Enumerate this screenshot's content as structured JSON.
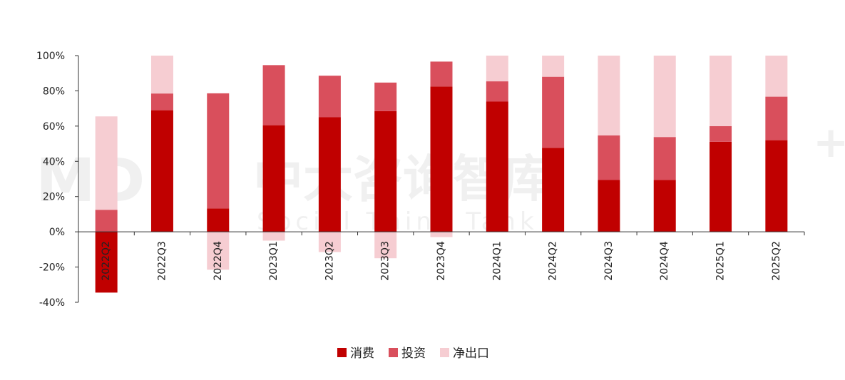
{
  "chart_data": {
    "type": "bar",
    "stacked": true,
    "categories": [
      "2022Q2",
      "2022Q3",
      "2022Q4",
      "2023Q1",
      "2023Q2",
      "2023Q3",
      "2023Q4",
      "2024Q1",
      "2024Q2",
      "2024Q3",
      "2024Q4",
      "2025Q1",
      "2025Q2"
    ],
    "series": [
      {
        "name": "消费",
        "color": "#c00000",
        "values": [
          -34.5,
          69,
          13.3,
          60.5,
          65,
          68.5,
          82.5,
          73.9,
          47.7,
          29.4,
          29.5,
          51.1,
          52
        ]
      },
      {
        "name": "投资",
        "color": "#d94f5c",
        "values": [
          12.5,
          9.5,
          65.3,
          34.1,
          23.6,
          16.2,
          14.1,
          11.5,
          40.3,
          25.3,
          24.3,
          8.9,
          24.7
        ]
      },
      {
        "name": "净出口",
        "color": "#f6cdd2",
        "values": [
          53,
          21.5,
          -21.5,
          -5,
          -11.5,
          -15,
          -3,
          14.6,
          12,
          45.3,
          46.2,
          40,
          23.3
        ]
      }
    ],
    "yticks": [
      "100%",
      "80%",
      "60%",
      "40%",
      "20%",
      "0%",
      "-20%",
      "-40%"
    ],
    "ylim": [
      -40,
      100
    ],
    "legend_position": "bottom-center",
    "grid": false
  },
  "watermark": {
    "name": "中大咨询智库",
    "subtitle": "Social Think Tank"
  }
}
